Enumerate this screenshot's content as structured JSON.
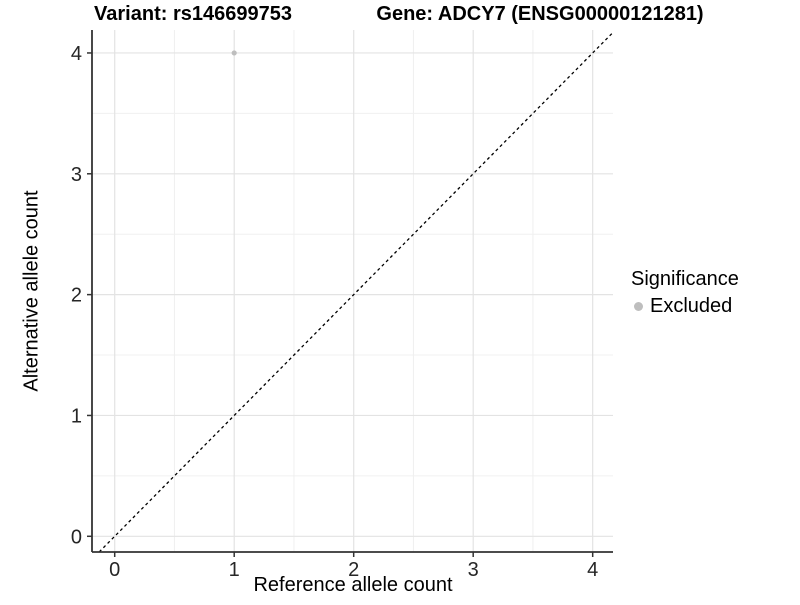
{
  "chart_data": {
    "type": "scatter",
    "title_left": "Variant: rs146699753",
    "title_right": "Gene: ADCY7 (ENSG00000121281)",
    "xlabel": "Reference allele count",
    "ylabel": "Alternative allele count",
    "xlim": [
      -0.19,
      4.17
    ],
    "ylim": [
      -0.13,
      4.19
    ],
    "x_ticks": [
      0,
      1,
      2,
      3,
      4
    ],
    "y_ticks": [
      0,
      1,
      2,
      3,
      4
    ],
    "x_minor_ticks": [
      0.5,
      1.5,
      2.5,
      3.5
    ],
    "y_minor_ticks": [
      0.5,
      1.5,
      2.5,
      3.5
    ],
    "grid": "major and minor, light gray on white panel",
    "points": [
      {
        "x": 1,
        "y": 4,
        "series": "Excluded"
      }
    ],
    "reference_line": {
      "type": "identity",
      "style": "dashed",
      "color": "#000000"
    },
    "legend": {
      "title": "Significance",
      "position": "right",
      "items": [
        {
          "label": "Excluded",
          "color": "#bebebe",
          "marker": "dot"
        }
      ]
    },
    "colors": {
      "point": "#bebebe",
      "grid_major": "#e3e3e3",
      "grid_minor": "#f0f0f0",
      "axis_line": "#333333",
      "tick_text": "#262626"
    }
  }
}
